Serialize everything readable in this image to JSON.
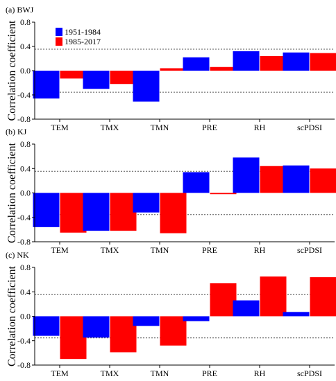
{
  "chart_data": [
    {
      "type": "bar",
      "title": "(a) BWJ",
      "categories": [
        "TEM",
        "TMX",
        "TMN",
        "PRE",
        "RH",
        "scPDSI"
      ],
      "series": [
        {
          "name": "1951-1984",
          "color": "#0000ff",
          "values": [
            -0.46,
            -0.3,
            -0.51,
            0.22,
            0.32,
            0.3
          ]
        },
        {
          "name": "1985-2017",
          "color": "#ff0000",
          "values": [
            -0.13,
            -0.22,
            0.04,
            0.06,
            0.24,
            0.29
          ]
        }
      ],
      "ylabel": "Correlation coefficient",
      "ylim": [
        -0.8,
        0.8
      ],
      "yticks": [
        -0.8,
        -0.4,
        0.0,
        0.4,
        0.8
      ],
      "ytick_labels": [
        "-0.8",
        "-0.4",
        "0.0",
        "0.4",
        "0.8"
      ],
      "reference_lines": [
        0.355,
        -0.355
      ],
      "legend": "top-left"
    },
    {
      "type": "bar",
      "title": "(b) KJ",
      "categories": [
        "TEM",
        "TMX",
        "TMN",
        "PRE",
        "RH",
        "scPDSI"
      ],
      "series": [
        {
          "name": "1951-1984",
          "color": "#0000ff",
          "values": [
            -0.56,
            -0.62,
            -0.32,
            0.34,
            0.58,
            0.45
          ]
        },
        {
          "name": "1985-2017",
          "color": "#ff0000",
          "values": [
            -0.65,
            -0.62,
            -0.66,
            -0.02,
            0.44,
            0.4
          ]
        }
      ],
      "ylabel": "Correlation coefficient",
      "ylim": [
        -0.8,
        0.8
      ],
      "yticks": [
        -0.8,
        -0.4,
        0.0,
        0.4,
        0.8
      ],
      "ytick_labels": [
        "-0.8",
        "-0.4",
        "0.0",
        "0.4",
        "0.8"
      ],
      "reference_lines": [
        0.355,
        -0.355
      ]
    },
    {
      "type": "bar",
      "title": "(c) NK",
      "categories": [
        "TEM",
        "TMX",
        "TMN",
        "PRE",
        "RH",
        "scPDSI"
      ],
      "series": [
        {
          "name": "1951-1984",
          "color": "#0000ff",
          "values": [
            -0.32,
            -0.35,
            -0.16,
            -0.08,
            0.26,
            0.07
          ]
        },
        {
          "name": "1985-2017",
          "color": "#ff0000",
          "values": [
            -0.7,
            -0.59,
            -0.48,
            0.54,
            0.65,
            0.64
          ]
        }
      ],
      "ylabel": "Correlation coefficient",
      "ylim": [
        -0.8,
        0.8
      ],
      "yticks": [
        -0.8,
        -0.4,
        0.0,
        0.4,
        0.8
      ],
      "ytick_labels": [
        "-0.8",
        "-0.4",
        "0.0",
        "0.4",
        "0.8"
      ],
      "reference_lines": [
        0.355,
        -0.355
      ]
    }
  ]
}
